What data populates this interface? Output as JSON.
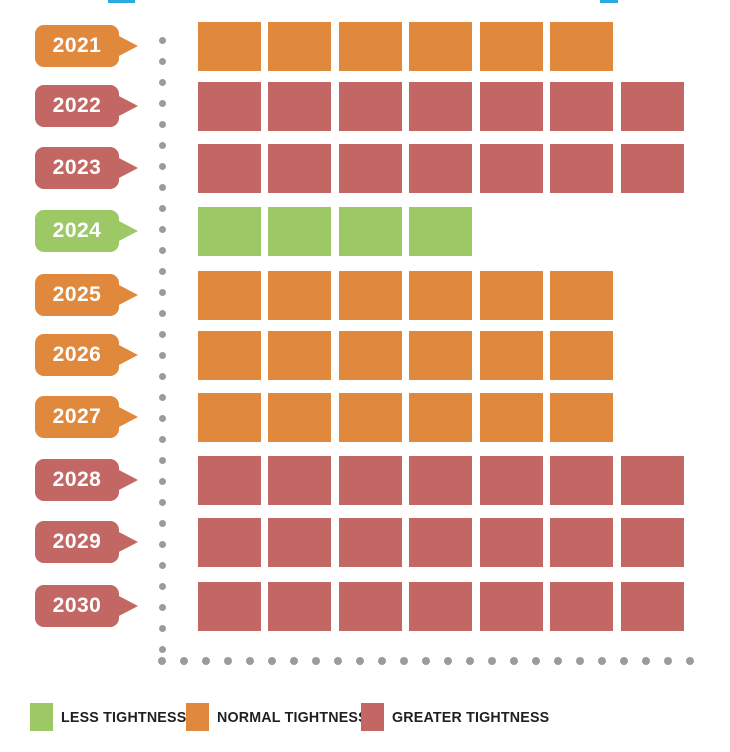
{
  "chart_data": {
    "type": "bar",
    "subtype": "waffle-row-timeline",
    "title": "",
    "categories": [
      "2021",
      "2022",
      "2023",
      "2024",
      "2025",
      "2026",
      "2027",
      "2028",
      "2029",
      "2030"
    ],
    "values": [
      6,
      7,
      7,
      4,
      6,
      6,
      6,
      7,
      7,
      7
    ],
    "value_unit": "blocks",
    "levels": [
      "normal",
      "greater",
      "greater",
      "less",
      "normal",
      "normal",
      "normal",
      "greater",
      "greater",
      "greater"
    ],
    "level_colors": {
      "less": "#9CC965",
      "normal": "#E0883C",
      "greater": "#C26764"
    },
    "legend": [
      {
        "key": "less",
        "label": "LESS TIGHTNESS"
      },
      {
        "key": "normal",
        "label": "NORMAL TIGHTNESS"
      },
      {
        "key": "greater",
        "label": "GREATER TIGHTNESS"
      }
    ],
    "legend_position": "bottom",
    "xlim_blocks": [
      0,
      7
    ],
    "axes": {
      "style": "dotted",
      "dot_color": "#9B9B9B",
      "grid": false
    }
  },
  "decor": {
    "cropped_title_fragment_color": "#2BA9E1"
  }
}
